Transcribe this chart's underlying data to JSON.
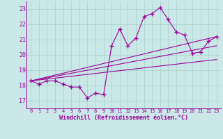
{
  "xlabel": "Windchill (Refroidissement éolien,°C)",
  "bg_color": "#cbe8e8",
  "grid_color": "#aad4cc",
  "line_color": "#990099",
  "ylim": [
    16.5,
    23.5
  ],
  "xlim": [
    -0.5,
    23.5
  ],
  "yticks": [
    17,
    18,
    19,
    20,
    21,
    22,
    23
  ],
  "xticks": [
    0,
    1,
    2,
    3,
    4,
    5,
    6,
    7,
    8,
    9,
    10,
    11,
    12,
    13,
    14,
    15,
    16,
    17,
    18,
    19,
    20,
    21,
    22,
    23
  ],
  "series1_x": [
    0,
    1,
    2,
    3,
    4,
    5,
    6,
    7,
    8,
    9,
    10,
    11,
    12,
    13,
    14,
    15,
    16,
    17,
    18,
    19,
    20,
    21,
    22,
    23
  ],
  "series1_y": [
    18.3,
    18.1,
    18.3,
    18.3,
    18.1,
    17.9,
    17.9,
    17.2,
    17.5,
    17.4,
    20.6,
    21.7,
    20.6,
    21.1,
    22.5,
    22.7,
    23.1,
    22.3,
    21.5,
    21.3,
    20.1,
    20.2,
    20.9,
    21.2
  ],
  "series2_x": [
    0,
    23
  ],
  "series2_y": [
    18.3,
    21.2
  ],
  "series3_x": [
    0,
    23
  ],
  "series3_y": [
    18.3,
    20.6
  ],
  "series4_x": [
    0,
    23
  ],
  "series4_y": [
    18.3,
    19.7
  ]
}
